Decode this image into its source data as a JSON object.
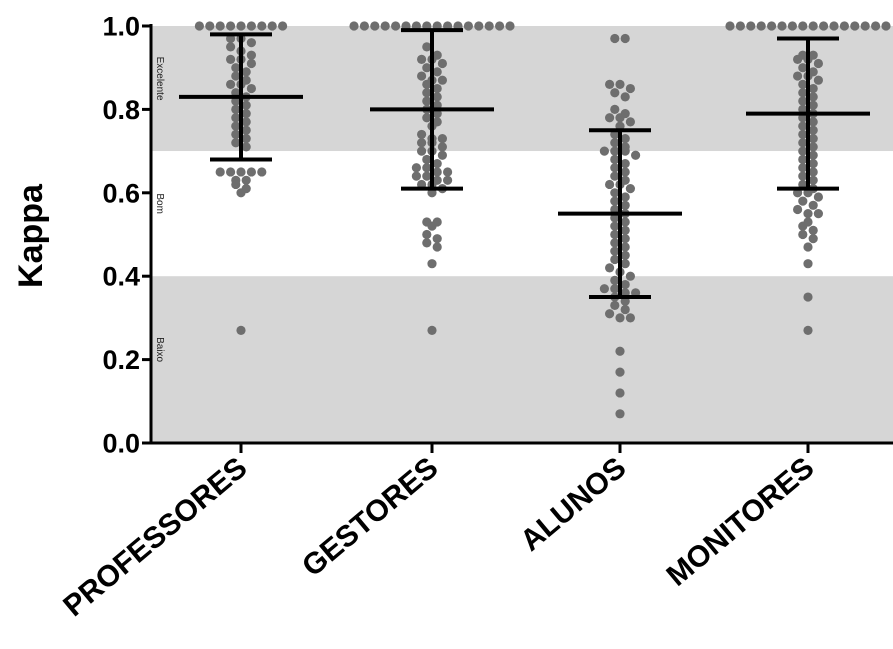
{
  "chart_data": {
    "type": "scatter",
    "subtype": "dot-plot-with-mean-and-sd",
    "title": "",
    "xlabel": "",
    "ylabel": "Kappa",
    "ylim": [
      0,
      1
    ],
    "yticks": [
      "0.0",
      "0.2",
      "0.4",
      "0.6",
      "0.8",
      "1.0"
    ],
    "grid": false,
    "categories": [
      "PROFESSORES",
      "GESTORES",
      "ALUNOS",
      "MONITORES"
    ],
    "bands": [
      {
        "label": "Excelente",
        "from": 0.7,
        "to": 1.0,
        "color": "#d6d6d6"
      },
      {
        "label": "Bom",
        "from": 0.4,
        "to": 0.7,
        "color": "#ffffff"
      },
      {
        "label": "Baixo",
        "from": 0.0,
        "to": 0.4,
        "color": "#d6d6d6"
      }
    ],
    "colors": {
      "points": "#6e6e6e",
      "summary": "#000000"
    },
    "series": [
      {
        "category": "PROFESSORES",
        "mean": 0.83,
        "upper": 0.98,
        "lower": 0.68,
        "values": [
          1,
          1,
          1,
          1,
          1,
          1,
          1,
          1,
          1,
          0.97,
          0.97,
          0.96,
          0.95,
          0.94,
          0.93,
          0.92,
          0.92,
          0.91,
          0.9,
          0.89,
          0.88,
          0.87,
          0.86,
          0.86,
          0.85,
          0.84,
          0.83,
          0.82,
          0.81,
          0.8,
          0.79,
          0.78,
          0.77,
          0.76,
          0.75,
          0.74,
          0.73,
          0.72,
          0.71,
          0.65,
          0.65,
          0.65,
          0.65,
          0.65,
          0.63,
          0.63,
          0.62,
          0.61,
          0.6,
          0.27
        ]
      },
      {
        "category": "GESTORES",
        "mean": 0.8,
        "upper": 0.99,
        "lower": 0.61,
        "values": [
          1,
          1,
          1,
          1,
          1,
          1,
          1,
          1,
          1,
          1,
          1,
          1,
          1,
          1,
          1,
          1,
          0.95,
          0.93,
          0.92,
          0.92,
          0.91,
          0.9,
          0.89,
          0.88,
          0.87,
          0.87,
          0.86,
          0.85,
          0.84,
          0.83,
          0.82,
          0.81,
          0.8,
          0.79,
          0.78,
          0.77,
          0.76,
          0.74,
          0.73,
          0.73,
          0.72,
          0.72,
          0.71,
          0.7,
          0.7,
          0.69,
          0.68,
          0.67,
          0.66,
          0.66,
          0.65,
          0.65,
          0.64,
          0.64,
          0.63,
          0.63,
          0.62,
          0.62,
          0.61,
          0.6,
          0.53,
          0.53,
          0.52,
          0.5,
          0.49,
          0.48,
          0.47,
          0.43,
          0.27
        ]
      },
      {
        "category": "ALUNOS",
        "mean": 0.55,
        "upper": 0.75,
        "lower": 0.35,
        "values": [
          0.97,
          0.97,
          0.86,
          0.86,
          0.85,
          0.84,
          0.83,
          0.8,
          0.79,
          0.78,
          0.78,
          0.77,
          0.76,
          0.74,
          0.73,
          0.72,
          0.71,
          0.7,
          0.7,
          0.7,
          0.69,
          0.68,
          0.67,
          0.66,
          0.65,
          0.64,
          0.63,
          0.62,
          0.62,
          0.61,
          0.6,
          0.59,
          0.58,
          0.57,
          0.56,
          0.55,
          0.54,
          0.53,
          0.52,
          0.51,
          0.5,
          0.49,
          0.48,
          0.47,
          0.46,
          0.45,
          0.44,
          0.43,
          0.42,
          0.41,
          0.4,
          0.39,
          0.38,
          0.37,
          0.37,
          0.36,
          0.36,
          0.35,
          0.34,
          0.33,
          0.32,
          0.31,
          0.3,
          0.3,
          0.22,
          0.17,
          0.12,
          0.07
        ]
      },
      {
        "category": "MONITORES",
        "mean": 0.79,
        "upper": 0.97,
        "lower": 0.61,
        "values": [
          1,
          1,
          1,
          1,
          1,
          1,
          1,
          1,
          1,
          1,
          1,
          1,
          1,
          1,
          1,
          1,
          0.93,
          0.93,
          0.92,
          0.92,
          0.91,
          0.9,
          0.89,
          0.88,
          0.88,
          0.87,
          0.86,
          0.85,
          0.84,
          0.83,
          0.82,
          0.81,
          0.8,
          0.79,
          0.78,
          0.77,
          0.76,
          0.75,
          0.74,
          0.73,
          0.72,
          0.71,
          0.7,
          0.69,
          0.68,
          0.67,
          0.66,
          0.65,
          0.64,
          0.63,
          0.62,
          0.61,
          0.6,
          0.6,
          0.59,
          0.58,
          0.57,
          0.56,
          0.55,
          0.55,
          0.53,
          0.52,
          0.51,
          0.5,
          0.49,
          0.47,
          0.43,
          0.35,
          0.27
        ]
      }
    ]
  }
}
